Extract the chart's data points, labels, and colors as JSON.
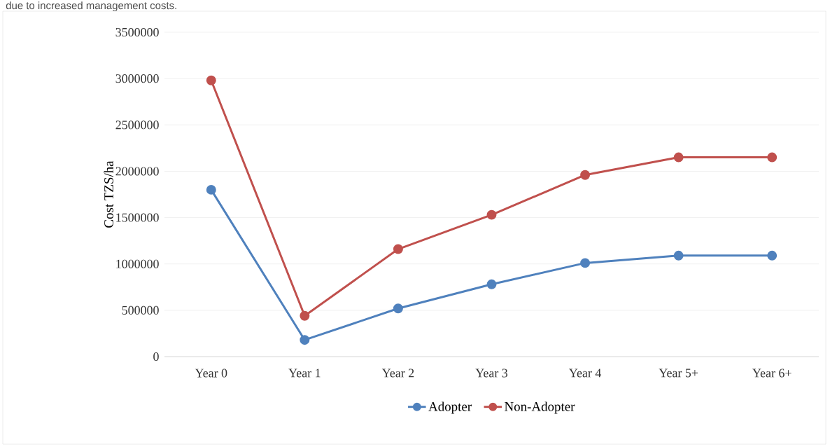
{
  "chart_data": {
    "type": "line",
    "annotations": [
      "due to increased management costs."
    ],
    "ylabel": "Cost TZS/ha",
    "categories": [
      "Year 0",
      "Year 1",
      "Year 2",
      "Year 3",
      "Year 4",
      "Year 5+",
      "Year 6+"
    ],
    "series": [
      {
        "name": "Adopter",
        "color": "#4f81bd",
        "values": [
          1800000,
          180000,
          520000,
          780000,
          1010000,
          1090000,
          1090000
        ]
      },
      {
        "name": "Non-Adopter",
        "color": "#c0504d",
        "values": [
          2980000,
          440000,
          1160000,
          1530000,
          1960000,
          2150000,
          2150000
        ]
      }
    ],
    "ylim": [
      0,
      3500000
    ],
    "yticks": [
      0,
      500000,
      1000000,
      1500000,
      2000000,
      2500000,
      3000000,
      3500000
    ],
    "grid": "y",
    "legend": "bottom",
    "marker": "circle",
    "line_style": "solid"
  }
}
